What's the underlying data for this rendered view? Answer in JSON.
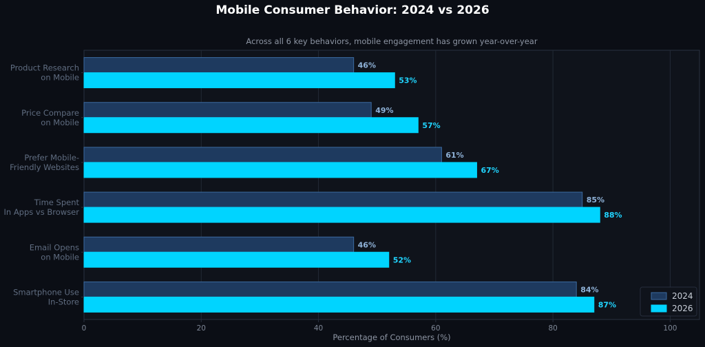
{
  "chart_data": {
    "type": "bar",
    "orientation": "horizontal",
    "title": "Mobile Consumer Behavior: 2024 vs 2026",
    "subtitle": "Across all 6 key behaviors, mobile engagement has grown year-over-year",
    "xlabel": "Percentage of Consumers (%)",
    "ylabel": "",
    "xlim": [
      0,
      105
    ],
    "xticks": [
      0,
      20,
      40,
      60,
      80,
      100
    ],
    "grid": "vertical",
    "legend_position": "bottom-right",
    "categories": [
      [
        "Product Research",
        "on Mobile"
      ],
      [
        "Price Compare",
        "on Mobile"
      ],
      [
        "Prefer Mobile-",
        "Friendly Websites"
      ],
      [
        "Time Spent",
        "In Apps vs Browser"
      ],
      [
        "Email Opens",
        "on Mobile"
      ],
      [
        "Smartphone Use",
        "In-Store"
      ]
    ],
    "series": [
      {
        "name": "2024",
        "values": [
          46,
          49,
          61,
          85,
          46,
          84
        ],
        "labels": [
          "46%",
          "49%",
          "61%",
          "85%",
          "46%",
          "84%"
        ],
        "color": "#1e3a5f",
        "edge": "#3b6aa0"
      },
      {
        "name": "2026",
        "values": [
          53,
          57,
          67,
          88,
          52,
          87
        ],
        "labels": [
          "53%",
          "57%",
          "67%",
          "88%",
          "52%",
          "87%"
        ],
        "color": "#00d4ff",
        "edge": "#00d4ff"
      }
    ],
    "colors": {
      "background": "#0b0e15",
      "plot_background": "#0f131b",
      "grid": "#222a36",
      "spine": "#2a3240"
    }
  }
}
